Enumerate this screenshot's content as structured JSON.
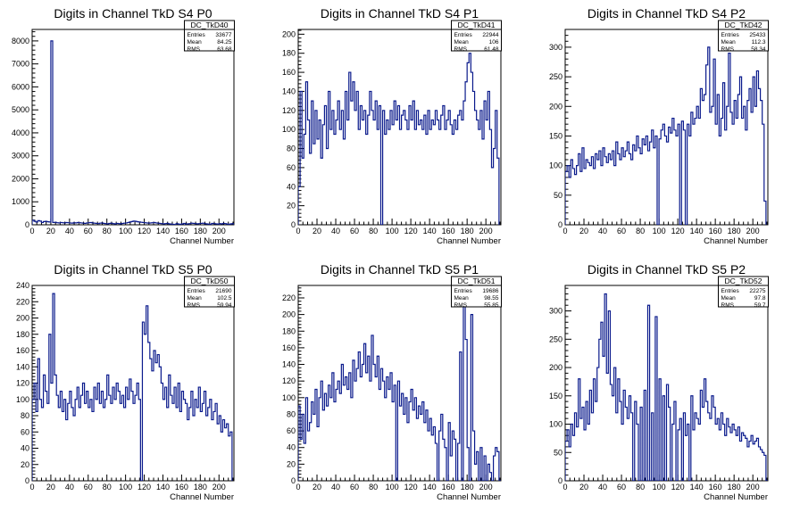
{
  "chart_data": [
    {
      "type": "histogram",
      "title": "Digits in Channel TkD S4 P0",
      "xlabel": "Channel Number",
      "ylabel": "",
      "xlim": [
        0,
        216
      ],
      "ylim": [
        0,
        8500
      ],
      "xticks": [
        0,
        20,
        40,
        60,
        80,
        100,
        120,
        140,
        160,
        180,
        200
      ],
      "yticks": [
        0,
        1000,
        2000,
        3000,
        4000,
        5000,
        6000,
        7000,
        8000
      ],
      "stats": {
        "name": "DC_TkD40",
        "rows": [
          [
            "Entries",
            "33677"
          ],
          [
            "Mean",
            "84.25"
          ],
          [
            "RMS",
            "63.68"
          ]
        ]
      },
      "bin_width": 2,
      "values": [
        200,
        150,
        120,
        180,
        160,
        100,
        140,
        150,
        130,
        120,
        8000,
        100,
        110,
        90,
        80,
        100,
        90,
        80,
        100,
        90,
        80,
        70,
        90,
        80,
        100,
        90,
        80,
        70,
        60,
        80,
        90,
        100,
        80,
        70,
        60,
        50,
        70,
        80,
        60,
        50,
        40,
        60,
        70,
        50,
        40,
        60,
        50,
        40,
        60,
        70,
        80,
        100,
        120,
        140,
        160,
        150,
        130,
        120,
        110,
        100,
        90,
        80,
        70,
        80,
        90,
        100,
        80,
        70,
        60,
        50,
        40,
        50,
        60,
        40,
        30,
        20,
        10,
        50,
        30,
        20,
        40,
        60,
        30,
        40,
        50,
        70,
        60,
        50,
        40,
        50,
        60,
        70,
        50,
        40,
        30,
        20,
        60,
        50,
        40,
        30,
        50,
        40,
        60,
        50,
        30,
        20,
        40,
        50
      ]
    },
    {
      "type": "histogram",
      "title": "Digits in Channel TkD S4 P1",
      "xlabel": "Channel Number",
      "ylabel": "",
      "xlim": [
        0,
        216
      ],
      "ylim": [
        0,
        205
      ],
      "xticks": [
        0,
        20,
        40,
        60,
        80,
        100,
        120,
        140,
        160,
        180,
        200
      ],
      "yticks": [
        0,
        20,
        40,
        60,
        80,
        100,
        120,
        140,
        160,
        180,
        200
      ],
      "stats": {
        "name": "DC_TkD41",
        "rows": [
          [
            "Entries",
            "22944"
          ],
          [
            "Mean",
            "106"
          ],
          [
            "RMS",
            "61.48"
          ]
        ]
      },
      "bin_width": 2,
      "values": [
        40,
        140,
        70,
        95,
        150,
        110,
        75,
        130,
        85,
        120,
        90,
        110,
        70,
        105,
        125,
        80,
        140,
        100,
        120,
        95,
        110,
        130,
        100,
        120,
        90,
        140,
        110,
        160,
        130,
        150,
        120,
        140,
        100,
        125,
        110,
        120,
        95,
        115,
        140,
        120,
        110,
        130,
        100,
        125,
        0,
        120,
        95,
        110,
        100,
        120,
        105,
        130,
        110,
        125,
        100,
        115,
        120,
        110,
        100,
        125,
        110,
        130,
        100,
        120,
        105,
        110,
        100,
        115,
        95,
        120,
        100,
        110,
        105,
        120,
        110,
        100,
        115,
        125,
        100,
        110,
        120,
        105,
        95,
        110,
        100,
        115,
        120,
        110,
        130,
        150,
        170,
        180,
        160,
        140,
        120,
        110,
        100,
        120,
        90,
        130,
        110,
        140,
        100,
        60,
        80,
        120,
        70
      ]
    },
    {
      "type": "histogram",
      "title": "Digits in Channel TkD S4 P2",
      "xlabel": "Channel Number",
      "ylabel": "",
      "xlim": [
        0,
        216
      ],
      "ylim": [
        0,
        330
      ],
      "xticks": [
        0,
        20,
        40,
        60,
        80,
        100,
        120,
        140,
        160,
        180,
        200
      ],
      "yticks": [
        0,
        50,
        100,
        150,
        200,
        250,
        300
      ],
      "stats": {
        "name": "DC_TkD42",
        "rows": [
          [
            "Entries",
            "25433"
          ],
          [
            "Mean",
            "112.3"
          ],
          [
            "RMS",
            "58.34"
          ]
        ]
      },
      "bin_width": 2,
      "values": [
        90,
        100,
        80,
        110,
        95,
        85,
        100,
        120,
        90,
        130,
        95,
        110,
        105,
        100,
        115,
        95,
        120,
        110,
        125,
        100,
        130,
        115,
        105,
        120,
        110,
        125,
        100,
        140,
        120,
        110,
        130,
        115,
        125,
        140,
        120,
        110,
        135,
        125,
        150,
        130,
        120,
        145,
        135,
        150,
        125,
        140,
        160,
        130,
        150,
        0,
        145,
        160,
        170,
        150,
        140,
        165,
        155,
        180,
        160,
        150,
        170,
        0,
        175,
        160,
        0,
        170,
        150,
        190,
        170,
        180,
        200,
        180,
        230,
        210,
        220,
        270,
        300,
        190,
        200,
        280,
        170,
        220,
        150,
        180,
        240,
        160,
        200,
        290,
        190,
        170,
        210,
        180,
        220,
        250,
        180,
        200,
        160,
        210,
        230,
        190,
        250,
        200,
        260,
        230,
        210,
        170,
        40
      ]
    },
    {
      "type": "histogram",
      "title": "Digits in Channel TkD S5 P0",
      "xlabel": "Channel Number",
      "ylabel": "",
      "xlim": [
        0,
        216
      ],
      "ylim": [
        0,
        240
      ],
      "xticks": [
        0,
        20,
        40,
        60,
        80,
        100,
        120,
        140,
        160,
        180,
        200
      ],
      "yticks": [
        0,
        20,
        40,
        60,
        80,
        100,
        120,
        140,
        160,
        180,
        200,
        220,
        240
      ],
      "stats": {
        "name": "DC_TkD50",
        "rows": [
          [
            "Entries",
            "21690"
          ],
          [
            "Mean",
            "102.5"
          ],
          [
            "RMS",
            "59.94"
          ]
        ]
      },
      "bin_width": 2,
      "values": [
        100,
        120,
        85,
        150,
        100,
        90,
        130,
        110,
        95,
        180,
        120,
        230,
        130,
        105,
        90,
        110,
        85,
        100,
        75,
        95,
        110,
        90,
        80,
        100,
        115,
        90,
        105,
        120,
        95,
        110,
        90,
        100,
        85,
        115,
        100,
        120,
        95,
        110,
        90,
        100,
        130,
        105,
        95,
        115,
        100,
        120,
        110,
        95,
        105,
        90,
        115,
        100,
        125,
        110,
        95,
        105,
        120,
        100,
        0,
        195,
        180,
        215,
        170,
        150,
        135,
        160,
        145,
        155,
        140,
        120,
        100,
        115,
        90,
        130,
        105,
        95,
        115,
        90,
        120,
        85,
        110,
        100,
        95,
        75,
        90,
        110,
        80,
        100,
        90,
        115,
        85,
        95,
        110,
        80,
        90,
        100,
        75,
        85,
        95,
        70,
        80,
        60,
        75,
        65,
        70,
        55,
        60
      ]
    },
    {
      "type": "histogram",
      "title": "Digits in Channel TkD S5 P1",
      "xlabel": "Channel Number",
      "ylabel": "",
      "xlim": [
        0,
        216
      ],
      "ylim": [
        0,
        235
      ],
      "xticks": [
        0,
        20,
        40,
        60,
        80,
        100,
        120,
        140,
        160,
        180,
        200
      ],
      "yticks": [
        0,
        20,
        40,
        60,
        80,
        100,
        120,
        140,
        160,
        180,
        200,
        220
      ],
      "stats": {
        "name": "DC_TkD51",
        "rows": [
          [
            "Entries",
            "19686"
          ],
          [
            "Mean",
            "98.55"
          ],
          [
            "RMS",
            "55.85"
          ]
        ]
      },
      "bin_width": 2,
      "values": [
        90,
        50,
        80,
        45,
        100,
        60,
        70,
        95,
        80,
        110,
        65,
        100,
        120,
        85,
        105,
        90,
        115,
        100,
        130,
        95,
        110,
        120,
        105,
        140,
        115,
        125,
        110,
        130,
        100,
        145,
        120,
        135,
        155,
        125,
        140,
        165,
        130,
        150,
        120,
        175,
        140,
        125,
        150,
        110,
        135,
        120,
        100,
        125,
        110,
        130,
        95,
        115,
        0,
        120,
        90,
        105,
        80,
        100,
        70,
        95,
        110,
        85,
        100,
        75,
        90,
        80,
        95,
        70,
        85,
        60,
        75,
        55,
        65,
        45,
        0,
        60,
        80,
        50,
        40,
        0,
        70,
        30,
        60,
        50,
        0,
        45,
        155,
        0,
        210,
        170,
        40,
        0,
        200,
        60,
        20,
        35,
        0,
        40,
        0,
        30,
        0,
        20,
        10,
        0,
        30,
        40,
        35,
        0
      ]
    },
    {
      "type": "histogram",
      "title": "Digits in Channel TkD S5 P2",
      "xlabel": "Channel Number",
      "ylabel": "",
      "xlim": [
        0,
        216
      ],
      "ylim": [
        0,
        345
      ],
      "xticks": [
        0,
        20,
        40,
        60,
        80,
        100,
        120,
        140,
        160,
        180,
        200
      ],
      "yticks": [
        0,
        50,
        100,
        150,
        200,
        250,
        300
      ],
      "stats": {
        "name": "DC_TkD52",
        "rows": [
          [
            "Entries",
            "22275"
          ],
          [
            "Mean",
            "97.8"
          ],
          [
            "RMS",
            "59.7"
          ]
        ]
      },
      "bin_width": 2,
      "values": [
        70,
        90,
        60,
        100,
        80,
        120,
        95,
        180,
        110,
        130,
        90,
        140,
        100,
        160,
        120,
        180,
        140,
        200,
        250,
        280,
        220,
        330,
        190,
        300,
        170,
        150,
        200,
        120,
        180,
        140,
        100,
        160,
        130,
        110,
        150,
        120,
        0,
        140,
        100,
        0,
        130,
        0,
        160,
        0,
        310,
        0,
        120,
        0,
        290,
        0,
        180,
        0,
        150,
        0,
        170,
        130,
        0,
        100,
        140,
        0,
        90,
        110,
        0,
        120,
        80,
        100,
        0,
        150,
        90,
        120,
        110,
        100,
        160,
        130,
        180,
        140,
        120,
        110,
        150,
        130,
        100,
        110,
        90,
        120,
        100,
        80,
        110,
        95,
        85,
        100,
        90,
        80,
        95,
        70,
        85,
        80,
        75,
        60,
        70,
        80,
        65,
        70,
        75,
        60,
        55,
        50,
        45,
        0
      ]
    }
  ]
}
